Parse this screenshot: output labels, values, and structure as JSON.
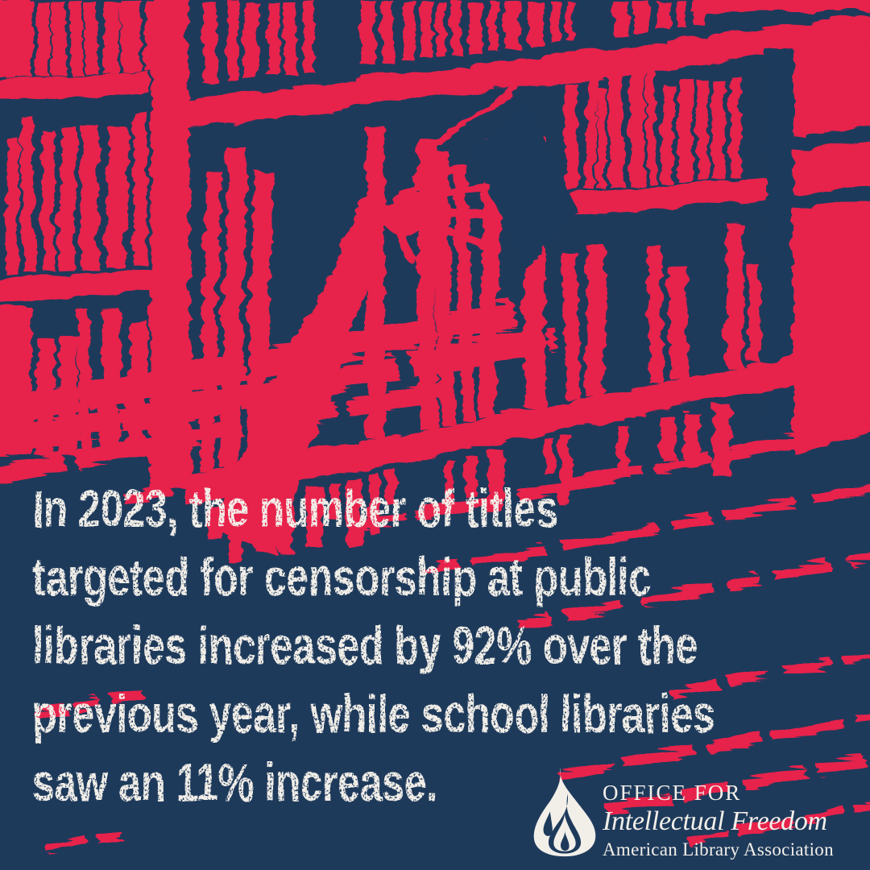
{
  "colors": {
    "navy": "#1E3A5B",
    "red": "#E7214B",
    "cream": "#F2EFE9"
  },
  "headline": {
    "lines": [
      "In 2023, the number of titles",
      "targeted for censorship at public",
      "libraries increased by 92% over the",
      "previous year, while school libraries",
      "saw an 11% increase."
    ]
  },
  "logo": {
    "icon": "flame-icon",
    "office_for": "OFFICE FOR",
    "program": "Intellectual Freedom",
    "association": "American Library Association"
  }
}
